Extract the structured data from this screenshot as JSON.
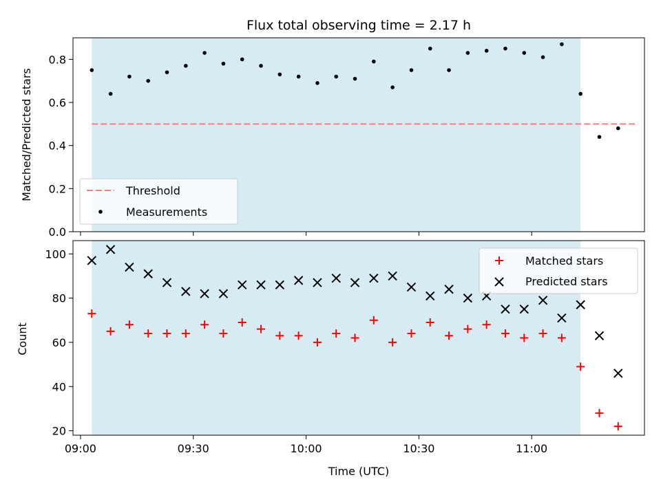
{
  "chart_data": [
    {
      "type": "scatter",
      "title": "Flux total observing time = 2.17 h",
      "xlabel": "",
      "ylabel": "Matched/Predicted stars",
      "xlim": [
        "08:58",
        "11:30"
      ],
      "ylim": [
        0,
        0.9
      ],
      "yticks": [
        0.0,
        0.2,
        0.4,
        0.6,
        0.8
      ],
      "ytick_labels": [
        "0.0",
        "0.2",
        "0.4",
        "0.6",
        "0.8"
      ],
      "shaded_region": {
        "x_start": "09:03",
        "x_end": "11:13",
        "color": "#add8e6"
      },
      "legend_position": "lower-left",
      "threshold": {
        "name": "Threshold",
        "y": 0.5,
        "x_start": "09:03",
        "x_end": "11:28",
        "color": "#f08080",
        "style": "dashed"
      },
      "series": [
        {
          "name": "Measurements",
          "color": "#000000",
          "marker": "dot",
          "x": [
            "09:03",
            "09:08",
            "09:13",
            "09:18",
            "09:23",
            "09:28",
            "09:33",
            "09:38",
            "09:43",
            "09:48",
            "09:53",
            "09:58",
            "10:03",
            "10:08",
            "10:13",
            "10:18",
            "10:23",
            "10:28",
            "10:33",
            "10:38",
            "10:43",
            "10:48",
            "10:53",
            "10:58",
            "11:03",
            "11:08",
            "11:13",
            "11:18",
            "11:23"
          ],
          "y": [
            0.75,
            0.64,
            0.72,
            0.7,
            0.74,
            0.77,
            0.83,
            0.78,
            0.8,
            0.77,
            0.73,
            0.72,
            0.69,
            0.72,
            0.71,
            0.79,
            0.67,
            0.75,
            0.85,
            0.75,
            0.83,
            0.84,
            0.85,
            0.83,
            0.81,
            0.87,
            0.64,
            0.44,
            0.48
          ]
        }
      ]
    },
    {
      "type": "scatter",
      "title": "",
      "xlabel": "Time (UTC)",
      "ylabel": "Count",
      "xlim": [
        "08:58",
        "11:30"
      ],
      "ylim": [
        18,
        106
      ],
      "xticks": [
        "09:00",
        "09:30",
        "10:00",
        "10:30",
        "11:00"
      ],
      "yticks": [
        20,
        40,
        60,
        80,
        100
      ],
      "shaded_region": {
        "x_start": "09:03",
        "x_end": "11:13",
        "color": "#add8e6"
      },
      "legend_position": "top-right",
      "series": [
        {
          "name": "Matched stars",
          "color": "#ff0000",
          "marker": "plus",
          "x": [
            "09:03",
            "09:08",
            "09:13",
            "09:18",
            "09:23",
            "09:28",
            "09:33",
            "09:38",
            "09:43",
            "09:48",
            "09:53",
            "09:58",
            "10:03",
            "10:08",
            "10:13",
            "10:18",
            "10:23",
            "10:28",
            "10:33",
            "10:38",
            "10:43",
            "10:48",
            "10:53",
            "10:58",
            "11:03",
            "11:08",
            "11:13",
            "11:18",
            "11:23"
          ],
          "y": [
            73,
            65,
            68,
            64,
            64,
            64,
            68,
            64,
            69,
            66,
            63,
            63,
            60,
            64,
            62,
            70,
            60,
            64,
            69,
            63,
            66,
            68,
            64,
            62,
            64,
            62,
            49,
            28,
            22
          ]
        },
        {
          "name": "Predicted stars",
          "color": "#000000",
          "marker": "x",
          "x": [
            "09:03",
            "09:08",
            "09:13",
            "09:18",
            "09:23",
            "09:28",
            "09:33",
            "09:38",
            "09:43",
            "09:48",
            "09:53",
            "09:58",
            "10:03",
            "10:08",
            "10:13",
            "10:18",
            "10:23",
            "10:28",
            "10:33",
            "10:38",
            "10:43",
            "10:48",
            "10:53",
            "10:58",
            "11:03",
            "11:08",
            "11:13",
            "11:18",
            "11:23"
          ],
          "y": [
            97,
            102,
            94,
            91,
            87,
            83,
            82,
            82,
            86,
            86,
            86,
            88,
            87,
            89,
            87,
            89,
            90,
            85,
            81,
            84,
            80,
            81,
            75,
            75,
            79,
            71,
            77,
            63,
            46
          ]
        }
      ]
    }
  ]
}
